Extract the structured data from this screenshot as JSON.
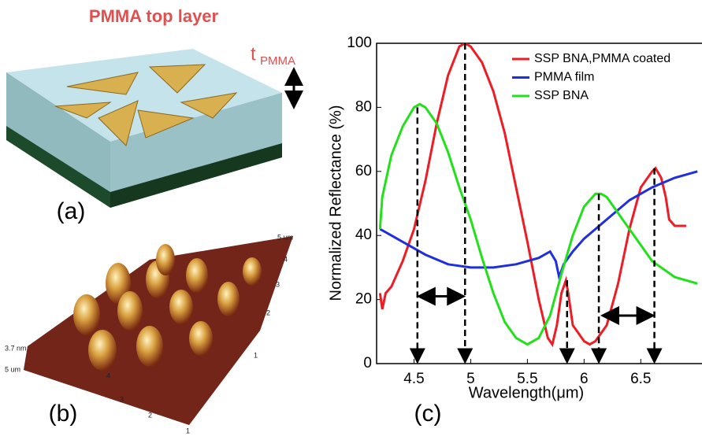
{
  "panel_a": {
    "title": "PMMA top layer",
    "thickness_label": "t",
    "thickness_sub": "PMMA",
    "label": "(a)"
  },
  "panel_b": {
    "label": "(b)",
    "z_label": "3.7 nm",
    "front_unit": "5 um",
    "front_ticks": [
      "4",
      "3",
      "2",
      "1"
    ],
    "side_unit": "5 um",
    "side_ticks": [
      "4",
      "3",
      "2",
      "1"
    ]
  },
  "chart_data": {
    "type": "line",
    "panel_label": "(c)",
    "xlabel": "Wavelength(μm)",
    "ylabel": "Normalized Reflectance (%)",
    "xlim": [
      4.17,
      7.04
    ],
    "ylim": [
      0,
      100
    ],
    "xticks": [
      4.5,
      5,
      5.5,
      6,
      6.5
    ],
    "yticks": [
      0,
      20,
      40,
      60,
      80,
      100
    ],
    "legend": "upper right",
    "series": [
      {
        "name": "SSP BNA,PMMA coated",
        "color": "#ee1c24",
        "x": [
          4.2,
          4.22,
          4.25,
          4.3,
          4.4,
          4.5,
          4.6,
          4.7,
          4.8,
          4.9,
          4.95,
          5.0,
          5.1,
          5.2,
          5.3,
          5.4,
          5.5,
          5.6,
          5.68,
          5.72,
          5.76,
          5.8,
          5.84,
          5.86,
          5.9,
          6.0,
          6.05,
          6.1,
          6.2,
          6.3,
          6.4,
          6.5,
          6.6,
          6.63,
          6.68,
          6.72,
          6.75,
          6.8,
          6.9
        ],
        "values": [
          22,
          17,
          22,
          24,
          32,
          42,
          57,
          75,
          90,
          99,
          100,
          99,
          94,
          85,
          72,
          55,
          38,
          20,
          8,
          6,
          12,
          22,
          26,
          22,
          12,
          7,
          6,
          7,
          12,
          25,
          42,
          55,
          60,
          61,
          58,
          52,
          45,
          43,
          43
        ]
      },
      {
        "name": "PMMA film",
        "color": "#1f2fe0",
        "x": [
          4.2,
          4.25,
          4.4,
          4.6,
          4.8,
          5.0,
          5.2,
          5.4,
          5.6,
          5.7,
          5.75,
          5.78,
          5.82,
          5.9,
          6.0,
          6.2,
          6.4,
          6.6,
          6.8,
          7.0
        ],
        "values": [
          42,
          41,
          38,
          34,
          31,
          30,
          30,
          31,
          33,
          35,
          32,
          27,
          31,
          35,
          39,
          45,
          51,
          55,
          58,
          60
        ]
      },
      {
        "name": "SSP BNA",
        "color": "#22e01c",
        "x": [
          4.2,
          4.22,
          4.3,
          4.4,
          4.5,
          4.55,
          4.6,
          4.7,
          4.8,
          4.9,
          5.0,
          5.1,
          5.2,
          5.3,
          5.4,
          5.5,
          5.6,
          5.7,
          5.8,
          5.9,
          6.0,
          6.1,
          6.15,
          6.2,
          6.3,
          6.4,
          6.5,
          6.6,
          6.8,
          7.0
        ],
        "values": [
          42,
          52,
          65,
          74,
          80,
          81,
          80,
          75,
          66,
          55,
          45,
          33,
          22,
          13,
          8,
          6,
          8,
          15,
          28,
          40,
          49,
          53,
          53,
          52,
          47,
          42,
          37,
          32,
          27,
          25
        ]
      }
    ],
    "guides": [
      {
        "x": 4.53,
        "y": 80
      },
      {
        "x": 4.95,
        "y": 100
      },
      {
        "x": 5.85,
        "y": 26
      },
      {
        "x": 6.13,
        "y": 53
      },
      {
        "x": 6.62,
        "y": 61
      }
    ],
    "spans": [
      {
        "x": [
          4.53,
          4.95
        ],
        "y": 21
      },
      {
        "x": [
          6.15,
          6.62
        ],
        "y": 15
      }
    ]
  }
}
